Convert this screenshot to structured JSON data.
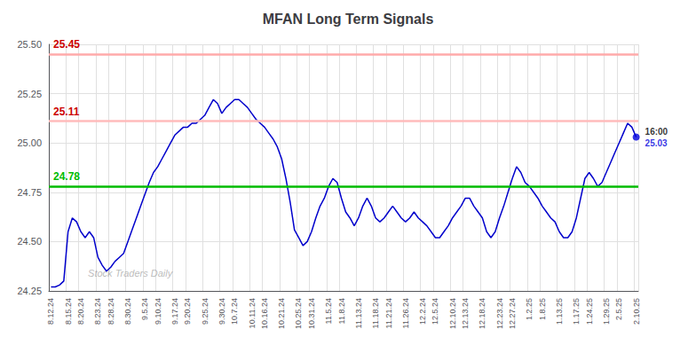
{
  "chart_data": {
    "type": "line",
    "title": "MFAN Long Term Signals",
    "watermark": "Stock Traders Daily",
    "categories": [
      "8.12.24",
      null,
      null,
      null,
      "8.15.24",
      null,
      null,
      "8.20.24",
      null,
      null,
      null,
      "8.23.24",
      null,
      null,
      "8.28.24",
      null,
      null,
      null,
      "8.30.24",
      null,
      null,
      null,
      "9.5.24",
      null,
      null,
      "9.10.24",
      null,
      null,
      null,
      "9.17.24",
      null,
      null,
      "9.20.24",
      null,
      null,
      null,
      "9.25.24",
      null,
      null,
      null,
      "9.30.24",
      null,
      null,
      "10.7.24",
      null,
      null,
      null,
      "10.11.24",
      null,
      null,
      "10.16.24",
      null,
      null,
      null,
      "10.21.24",
      null,
      null,
      null,
      "10.25.24",
      null,
      null,
      "10.31.24",
      null,
      null,
      null,
      "11.5.24",
      null,
      null,
      "11.8.24",
      null,
      null,
      null,
      "11.13.24",
      null,
      null,
      null,
      "11.18.24",
      null,
      null,
      "11.21.24",
      null,
      null,
      null,
      "11.26.24",
      null,
      null,
      null,
      "12.2.24",
      null,
      null,
      "12.5.24",
      null,
      null,
      null,
      "12.10.24",
      null,
      null,
      "12.13.24",
      null,
      null,
      null,
      "12.18.24",
      null,
      null,
      null,
      "12.23.24",
      null,
      null,
      "12.27.24",
      null,
      null,
      null,
      "1.2.25",
      null,
      null,
      "1.8.25",
      null,
      null,
      null,
      "1.13.25",
      null,
      null,
      null,
      "1.17.25",
      null,
      null,
      "1.24.25",
      null,
      null,
      null,
      "1.29.25",
      null,
      null,
      "2.5.25",
      null,
      null,
      null,
      "2.10.25"
    ],
    "values": [
      24.27,
      24.27,
      24.28,
      24.3,
      24.55,
      24.62,
      24.6,
      24.55,
      24.52,
      24.55,
      24.52,
      24.42,
      24.38,
      24.35,
      24.37,
      24.4,
      24.42,
      24.44,
      24.5,
      24.56,
      24.62,
      24.68,
      24.74,
      24.8,
      24.85,
      24.88,
      24.92,
      24.96,
      25.0,
      25.04,
      25.06,
      25.08,
      25.08,
      25.1,
      25.1,
      25.12,
      25.14,
      25.18,
      25.22,
      25.2,
      25.15,
      25.18,
      25.2,
      25.22,
      25.22,
      25.2,
      25.18,
      25.15,
      25.12,
      25.1,
      25.08,
      25.05,
      25.02,
      24.98,
      24.92,
      24.82,
      24.7,
      24.56,
      24.52,
      24.48,
      24.5,
      24.55,
      24.62,
      24.68,
      24.72,
      24.78,
      24.82,
      24.8,
      24.72,
      24.65,
      24.62,
      24.58,
      24.62,
      24.68,
      24.72,
      24.68,
      24.62,
      24.6,
      24.62,
      24.65,
      24.68,
      24.65,
      24.62,
      24.6,
      24.62,
      24.65,
      24.62,
      24.6,
      24.58,
      24.55,
      24.52,
      24.52,
      24.55,
      24.58,
      24.62,
      24.65,
      24.68,
      24.72,
      24.72,
      24.68,
      24.65,
      24.62,
      24.55,
      24.52,
      24.55,
      24.62,
      24.68,
      24.75,
      24.82,
      24.88,
      24.85,
      24.8,
      24.78,
      24.75,
      24.72,
      24.68,
      24.65,
      24.62,
      24.6,
      24.55,
      24.52,
      24.52,
      24.55,
      24.62,
      24.72,
      24.82,
      24.85,
      24.82,
      24.78,
      24.8,
      24.85,
      24.9,
      24.95,
      25.0,
      25.05,
      25.1,
      25.08,
      25.03
    ],
    "color": "#0000cc",
    "hlines": [
      {
        "value": 25.45,
        "label": "25.45",
        "color": "#ffaaaa",
        "label_color": "#cc0000"
      },
      {
        "value": 25.11,
        "label": "25.11",
        "color": "#ffbbbb",
        "label_color": "#cc0000"
      },
      {
        "value": 24.78,
        "label": "24.78",
        "color": "#00bb00",
        "label_color": "#00bb00"
      }
    ],
    "last_point": {
      "time_label": "16:00",
      "label": "25.03",
      "color": "#0000dd"
    },
    "ylim": [
      24.25,
      25.5
    ],
    "yticks": [
      {
        "value": 24.25,
        "label": "24.25"
      },
      {
        "value": 24.5,
        "label": "24.50"
      },
      {
        "value": 24.75,
        "label": "24.75"
      },
      {
        "value": 25.0,
        "label": "25.00"
      },
      {
        "value": 25.25,
        "label": "25.25"
      },
      {
        "value": 25.5,
        "label": "25.50"
      }
    ],
    "grid": true
  }
}
